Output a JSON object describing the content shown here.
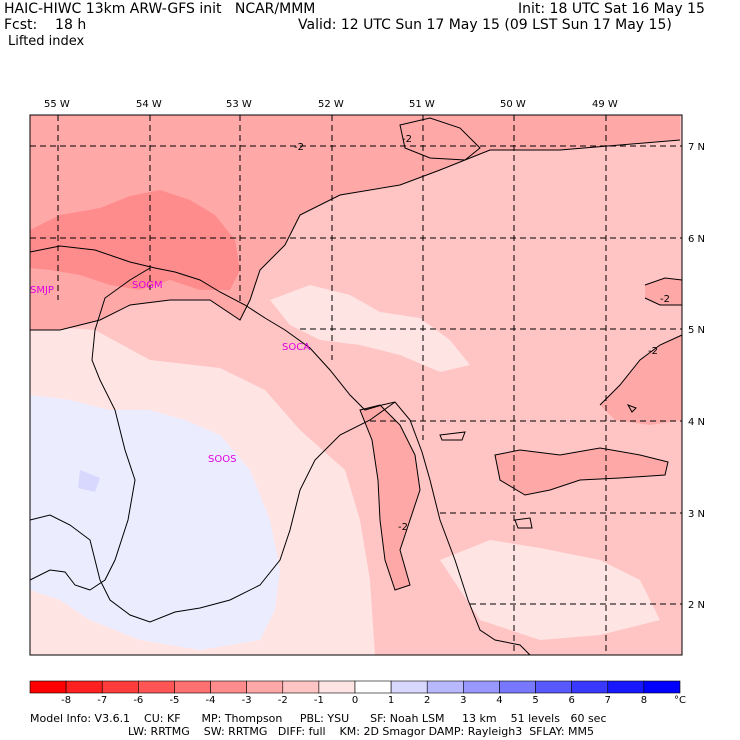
{
  "header": {
    "line1_left": "HAIC-HIWC 13km ARW-GFS init   NCAR/MMM",
    "line1_right": "Init: 18 UTC Sat 16 May 15",
    "line2_left": "Fcst:    18 h",
    "line2_right": "Valid: 12 UTC Sun 17 May 15 (09 LST Sun 17 May 15)",
    "field": "Lifted index"
  },
  "lon_labels": [
    "55 W",
    "54 W",
    "53 W",
    "52 W",
    "51 W",
    "50 W",
    "49 W"
  ],
  "lat_labels": [
    "7 N",
    "6 N",
    "5 N",
    "4 N",
    "3 N",
    "2 N"
  ],
  "stations": [
    "SMJP",
    "SOGM",
    "SOCA",
    "SOOS"
  ],
  "contour_labels": [
    "-2",
    "-2",
    "-2",
    "-2",
    "-2"
  ],
  "colorbar": {
    "labels": [
      "-8",
      "-7",
      "-6",
      "-5",
      "-4",
      "-3",
      "-2",
      "-1",
      "0",
      "1",
      "2",
      "3",
      "4",
      "5",
      "6",
      "7",
      "8",
      "°C"
    ],
    "colors": [
      "#ff0000",
      "#ff2020",
      "#ff3c3c",
      "#ff5555",
      "#ff7070",
      "#ff8c8c",
      "#ffa8a8",
      "#ffc4c4",
      "#ffe4e4",
      "#ffffff",
      "#d8d8ff",
      "#b8b8ff",
      "#9898ff",
      "#7878ff",
      "#5858ff",
      "#3838ff",
      "#1818ff",
      "#0000ff"
    ]
  },
  "footer": {
    "line1": "Model Info: V3.6.1    CU: KF      MP: Thompson     PBL: YSU      SF: Noah LSM     13 km    51 levels   60 sec",
    "line2": "LW: RRTMG    SW: RRTMG   DIFF: full    KM: 2D Smagor DAMP: Rayleigh3  SFLAY: MM5"
  }
}
